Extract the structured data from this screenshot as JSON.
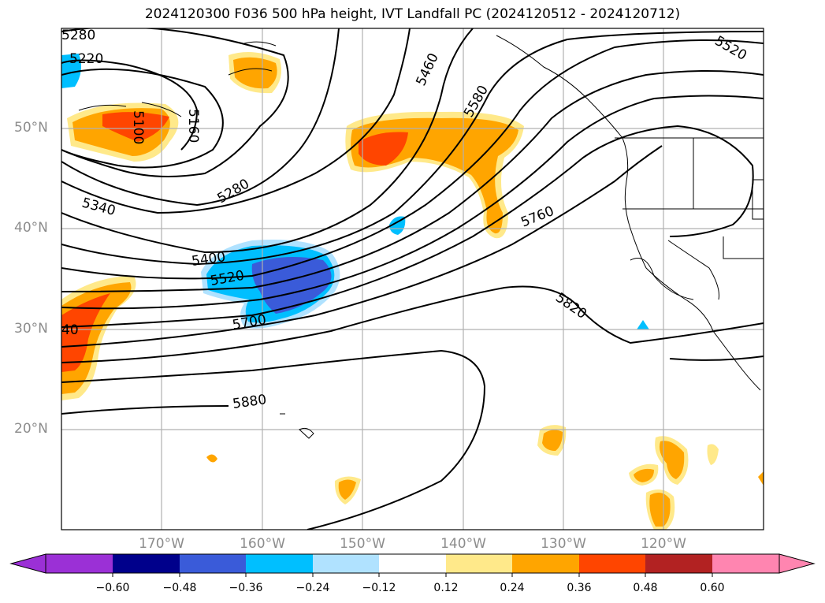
{
  "title": "2024120300 F036 500 hPa height, IVT Landfall PC (2024120512 - 2024120712)",
  "lat_labels": [
    "50°N",
    "40°N",
    "30°N",
    "20°N"
  ],
  "lon_labels": [
    "170°W",
    "160°W",
    "150°W",
    "140°W",
    "130°W",
    "120°W"
  ],
  "contour_labels": [
    "5280",
    "5220",
    "5100",
    "5160",
    "5280",
    "5340",
    "5400",
    "5520",
    "5700",
    "40",
    "5880",
    "5460",
    "5580",
    "5760",
    "5820",
    "5520"
  ],
  "colorbar": {
    "ticks": [
      "−0.60",
      "−0.48",
      "−0.36",
      "−0.24",
      "−0.12",
      "0.12",
      "0.24",
      "0.36",
      "0.48",
      "0.60"
    ],
    "colors": [
      "#9b30d6",
      "#00008b",
      "#3a5bd9",
      "#00bfff",
      "#b0e2ff",
      "#ffffff",
      "#ffe98a",
      "#ffa500",
      "#ff4500",
      "#b22222",
      "#ff85b0"
    ]
  }
}
